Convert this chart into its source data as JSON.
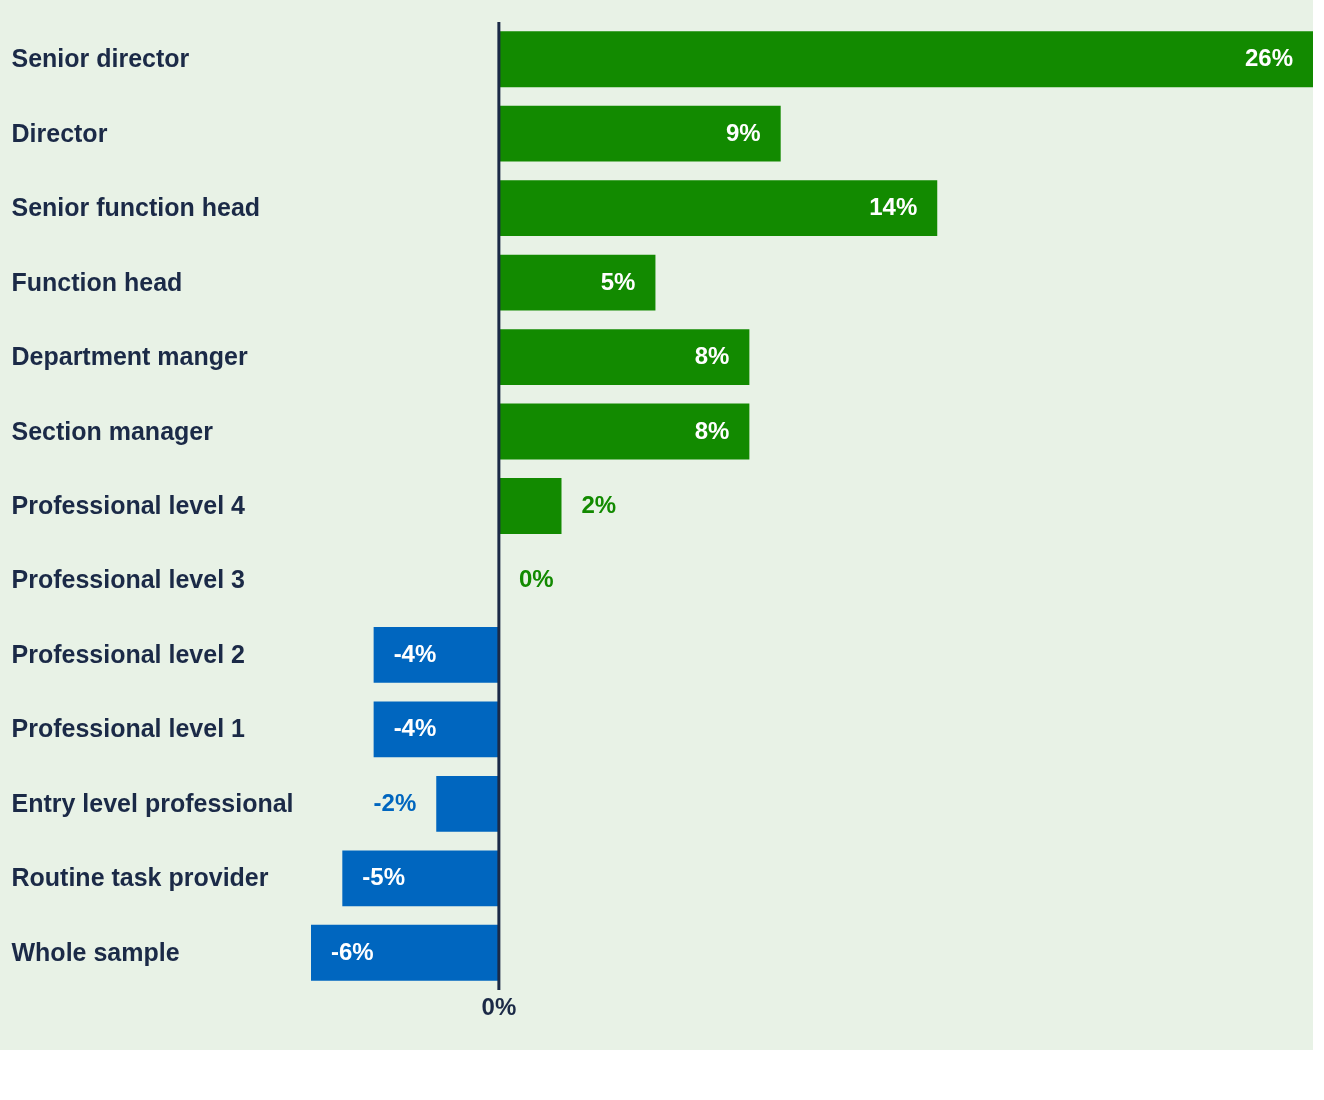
{
  "chart_data": {
    "type": "bar",
    "orientation": "horizontal",
    "categories": [
      "Senior director",
      "Director",
      "Senior function head",
      "Function head",
      "Department manger",
      "Section manager",
      "Professional level 4",
      "Professional level 3",
      "Professional level 2",
      "Professional level 1",
      "Entry level professional",
      "Routine task provider",
      "Whole sample"
    ],
    "values": [
      26,
      9,
      14,
      5,
      8,
      8,
      2,
      0,
      -4,
      -4,
      -2,
      -5,
      -6
    ],
    "value_labels": [
      "26%",
      "9%",
      "14%",
      "5%",
      "8%",
      "8%",
      "2%",
      "0%",
      "-4%",
      "-4%",
      "-2%",
      "-5%",
      "-6%"
    ],
    "colors": [
      "#128a00",
      "#128a00",
      "#128a00",
      "#128a00",
      "#128a00",
      "#128a00",
      "#128a00",
      "#128a00",
      "#0066bf",
      "#0066bf",
      "#0066bf",
      "#0066bf",
      "#0066bf"
    ],
    "annotations": [
      "0%"
    ],
    "ref_lines": [
      {
        "axis": "x",
        "value": 0,
        "color": "#1b2a47"
      }
    ],
    "grid": false
  }
}
